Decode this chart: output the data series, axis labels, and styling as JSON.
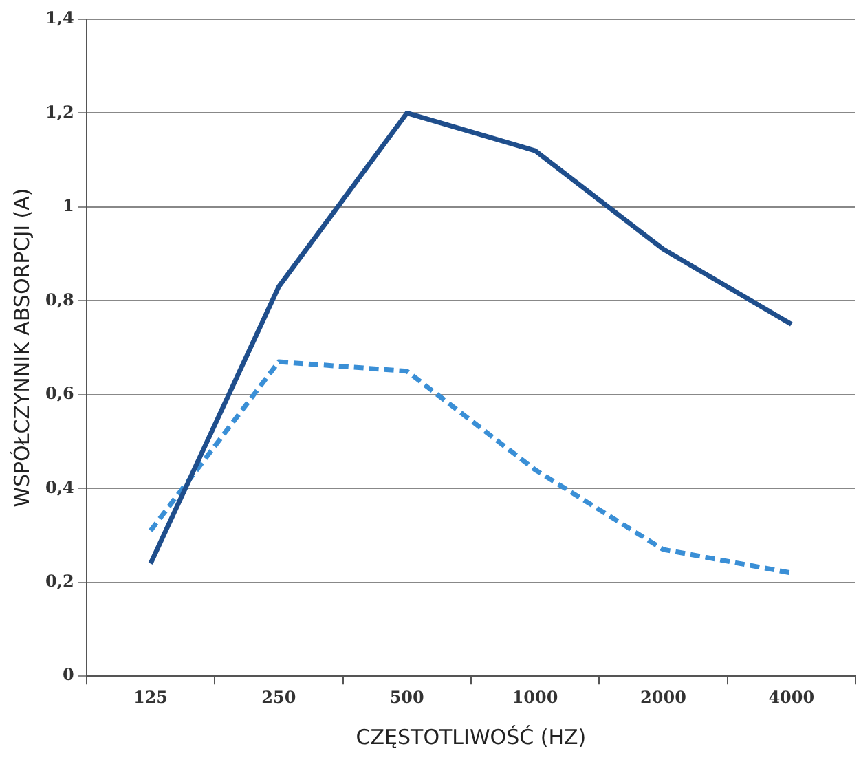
{
  "chart_data": {
    "type": "line",
    "xlabel": "CZĘSTOTLIWOŚĆ (HZ)",
    "ylabel": "WSPÓŁCZYNNIK ABSORPCJI (A)",
    "categories": [
      "125",
      "250",
      "500",
      "1000",
      "2000",
      "4000"
    ],
    "series": [
      {
        "color": "#1f4e8c",
        "line_style": "solid",
        "values": [
          0.24,
          0.83,
          1.2,
          1.12,
          0.91,
          0.75
        ]
      },
      {
        "color": "#3a8fd6",
        "line_style": "dashed",
        "values": [
          0.31,
          0.67,
          0.65,
          0.44,
          0.27,
          0.22
        ]
      }
    ],
    "ylim": [
      0,
      1.4
    ],
    "yticks": [
      0,
      {
        "value": 0.2,
        "label": "0,2"
      },
      {
        "value": 0.4,
        "label": "0,4"
      },
      {
        "value": 0.6,
        "label": "0,6"
      },
      {
        "value": 0.8,
        "label": "0,8"
      },
      1,
      {
        "value": 1.2,
        "label": "1,2"
      },
      {
        "value": 1.4,
        "label": "1,4"
      }
    ],
    "grid": "y",
    "legend": false,
    "marker": "none"
  }
}
